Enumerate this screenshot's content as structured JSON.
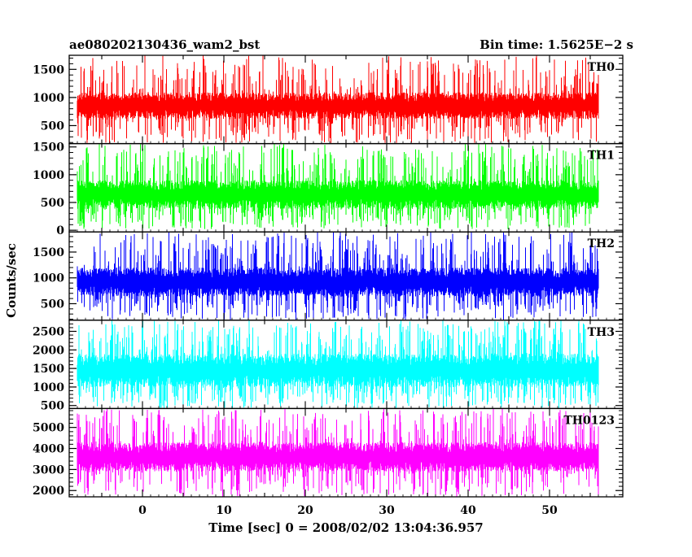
{
  "chart_data": {
    "type": "line",
    "title": "ae080202130436_wam2_bst",
    "subtitle": "Bin time: 1.5625E−2 s",
    "xlabel": "Time [sec] 0 = 2008/02/02 13:04:36.957",
    "ylabel": "Counts/sec",
    "xlim": [
      -9,
      59
    ],
    "xticks": [
      0,
      10,
      20,
      30,
      40,
      50
    ],
    "data_x_range": [
      -8,
      56
    ],
    "bin_time_s": 0.015625,
    "grid": false,
    "legend": "none",
    "panels": [
      {
        "name": "TH0",
        "color": "#ff0000",
        "ylim": [
          180,
          1750
        ],
        "yticks": [
          500,
          1000,
          1500
        ],
        "band_low": 620,
        "band_high": 1090,
        "spike_low": 180,
        "spike_high": 1750,
        "fill_floor": 180
      },
      {
        "name": "TH1",
        "color": "#00ff00",
        "ylim": [
          -30,
          1560
        ],
        "yticks": [
          0,
          500,
          1000,
          1500
        ],
        "band_low": 380,
        "band_high": 900,
        "spike_low": 20,
        "spike_high": 1560,
        "fill_floor": -30
      },
      {
        "name": "TH2",
        "color": "#0000ff",
        "ylim": [
          180,
          1890
        ],
        "yticks": [
          500,
          1000,
          1500
        ],
        "band_low": 640,
        "band_high": 1200,
        "spike_low": 180,
        "spike_high": 1890,
        "fill_floor": 180
      },
      {
        "name": "TH3",
        "color": "#00ffff",
        "ylim": [
          420,
          2800
        ],
        "yticks": [
          500,
          1000,
          1500,
          2000,
          2500
        ],
        "band_low": 1000,
        "band_high": 1900,
        "spike_low": 420,
        "spike_high": 2800,
        "fill_floor": 420
      },
      {
        "name": "TH0123",
        "color": "#ff00ff",
        "ylim": [
          1700,
          5900
        ],
        "yticks": [
          2000,
          3000,
          4000,
          5000
        ],
        "band_low": 2900,
        "band_high": 4300,
        "spike_low": 1700,
        "spike_high": 5900,
        "fill_floor": 1700
      }
    ]
  }
}
